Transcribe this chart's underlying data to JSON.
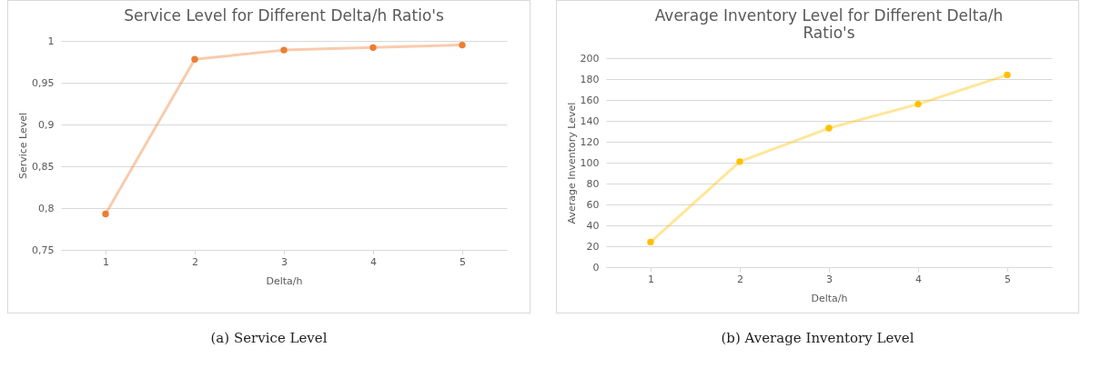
{
  "chart_data": [
    {
      "type": "line",
      "title": "Service Level for Different Delta/h Ratio's",
      "xlabel": "Delta/h",
      "ylabel": "Service Level",
      "categories": [
        "1",
        "2",
        "3",
        "4",
        "5"
      ],
      "series": [
        {
          "color": "#ed7d31",
          "values": [
            0.793,
            0.978,
            0.989,
            0.992,
            0.995
          ]
        }
      ],
      "ylim": [
        0.75,
        1.0
      ],
      "yticks": [
        {
          "value": 0.75,
          "label": "0,75"
        },
        {
          "value": 0.8,
          "label": "0,8"
        },
        {
          "value": 0.85,
          "label": "0,85"
        },
        {
          "value": 0.9,
          "label": "0,9"
        },
        {
          "value": 0.95,
          "label": "0,95"
        },
        1
      ],
      "grid": "y",
      "marker": "circle",
      "legend": false,
      "annotations": [
        "(a) Service Level"
      ]
    },
    {
      "type": "line",
      "title": "Average Inventory Level for Different Delta/h Ratio's",
      "xlabel": "Delta/h",
      "ylabel": "Average Inventory Level",
      "categories": [
        "1",
        "2",
        "3",
        "4",
        "5"
      ],
      "series": [
        {
          "color": "#ffc000",
          "values": [
            24,
            101,
            133,
            156,
            184
          ]
        }
      ],
      "ylim": [
        0,
        200
      ],
      "yticks": [
        0,
        20,
        40,
        60,
        80,
        100,
        120,
        140,
        160,
        180,
        200
      ],
      "grid": "y",
      "marker": "circle",
      "legend": false,
      "annotations": [
        "(b) Average Inventory Level"
      ]
    }
  ]
}
